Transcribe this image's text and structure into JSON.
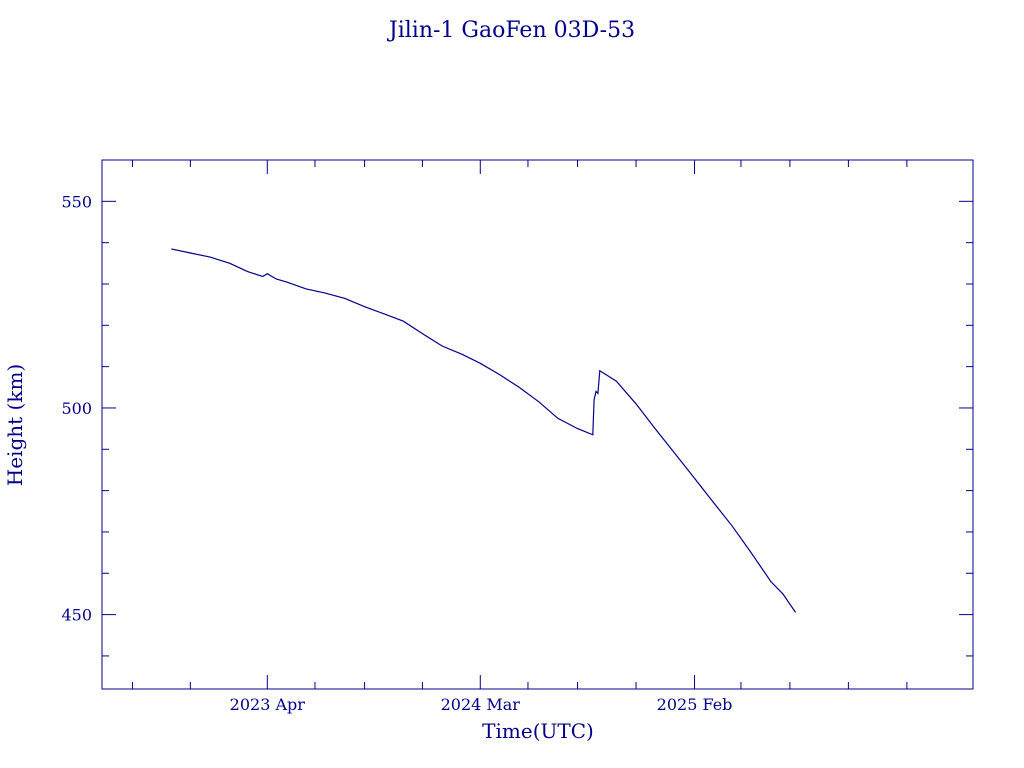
{
  "chart_data": {
    "type": "line",
    "title": "Jilin-1 GaoFen 03D-53",
    "xlabel": "Time(UTC)",
    "ylabel": "Height (km)",
    "ylim": [
      432,
      560
    ],
    "xlim": [
      "2022-07-15",
      "2026-04-15"
    ],
    "yticks": [
      450,
      500,
      550
    ],
    "xticks": [
      {
        "date": "2023-04-01",
        "label": "2023 Apr"
      },
      {
        "date": "2024-03-01",
        "label": "2024 Mar"
      },
      {
        "date": "2025-02-01",
        "label": "2025 Feb"
      }
    ],
    "minor_ticks_x": [
      "2022-09-01",
      "2022-12-01",
      "2023-06-15",
      "2023-09-01",
      "2023-12-01",
      "2024-05-15",
      "2024-08-01",
      "2024-11-01",
      "2025-04-15",
      "2025-07-01",
      "2025-10-01",
      "2026-01-01"
    ],
    "minor_ticks_y": [
      440,
      460,
      470,
      480,
      490,
      510,
      520,
      530,
      540
    ],
    "grid": false,
    "color": "#00008B",
    "series": [
      {
        "points": [
          [
            "2022-11-01",
            538.5
          ],
          [
            "2022-12-01",
            537.5
          ],
          [
            "2023-01-01",
            536.5
          ],
          [
            "2023-02-01",
            535
          ],
          [
            "2023-03-01",
            533
          ],
          [
            "2023-03-25",
            531.8
          ],
          [
            "2023-04-01",
            532.5
          ],
          [
            "2023-04-15",
            531.2
          ],
          [
            "2023-05-01",
            530.5
          ],
          [
            "2023-06-01",
            528.8
          ],
          [
            "2023-07-01",
            527.8
          ],
          [
            "2023-08-01",
            526.5
          ],
          [
            "2023-09-01",
            524.5
          ],
          [
            "2023-10-01",
            522.8
          ],
          [
            "2023-11-01",
            521
          ],
          [
            "2023-12-01",
            518
          ],
          [
            "2024-01-01",
            515
          ],
          [
            "2024-02-01",
            513
          ],
          [
            "2024-03-01",
            510.8
          ],
          [
            "2024-04-01",
            508
          ],
          [
            "2024-05-01",
            505
          ],
          [
            "2024-06-01",
            501.5
          ],
          [
            "2024-07-01",
            497.5
          ],
          [
            "2024-08-01",
            495
          ],
          [
            "2024-08-25",
            493.5
          ],
          [
            "2024-08-27",
            502
          ],
          [
            "2024-08-30",
            504
          ],
          [
            "2024-09-02",
            503.5
          ],
          [
            "2024-09-05",
            509
          ],
          [
            "2024-10-01",
            506.5
          ],
          [
            "2024-11-01",
            501
          ],
          [
            "2024-12-01",
            495
          ],
          [
            "2025-01-01",
            489
          ],
          [
            "2025-02-01",
            483
          ],
          [
            "2025-03-01",
            477.5
          ],
          [
            "2025-04-01",
            471.5
          ],
          [
            "2025-05-01",
            465
          ],
          [
            "2025-06-01",
            458
          ],
          [
            "2025-06-20",
            455
          ],
          [
            "2025-07-10",
            450.5
          ]
        ]
      }
    ]
  }
}
